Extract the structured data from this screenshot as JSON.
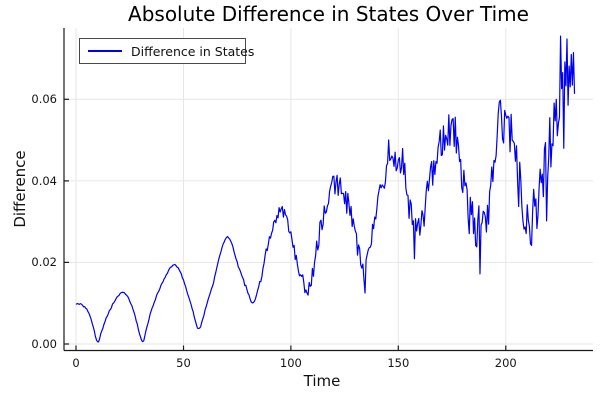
{
  "colors": {
    "line": "#0000f2",
    "grid": "#e6e6e6",
    "spine": "#1a1a1a",
    "background": "#ffffff"
  },
  "chart_data": {
    "type": "line",
    "title": "Absolute Difference in States Over Time",
    "xlabel": "Time",
    "ylabel": "Difference",
    "legend_position": "top-left",
    "grid": true,
    "series": [
      {
        "name": "Difference in States",
        "color": "#0000f2"
      }
    ],
    "xlim": [
      -5.6,
      240.6
    ],
    "ylim": [
      -0.0016,
      0.0775
    ],
    "xticks": [
      {
        "v": 0,
        "label": "0"
      },
      {
        "v": 50,
        "label": "50"
      },
      {
        "v": 100,
        "label": "100"
      },
      {
        "v": 150,
        "label": "150"
      },
      {
        "v": 200,
        "label": "200"
      }
    ],
    "yticks": [
      {
        "v": 0.0,
        "label": "0.00"
      },
      {
        "v": 0.02,
        "label": "0.02"
      },
      {
        "v": 0.04,
        "label": "0.04"
      },
      {
        "v": 0.06,
        "label": "0.06"
      }
    ],
    "t_start": 0,
    "t_end": 232,
    "t_step": 0.5,
    "backbone": [
      [
        0,
        0.0098
      ],
      [
        2,
        0.0097
      ],
      [
        4,
        0.009
      ],
      [
        6,
        0.0076
      ],
      [
        8,
        0.0043
      ],
      [
        10,
        0.0004
      ],
      [
        12,
        0.0032
      ],
      [
        14,
        0.0063
      ],
      [
        16,
        0.0086
      ],
      [
        19,
        0.0114
      ],
      [
        22,
        0.0126
      ],
      [
        24,
        0.0116
      ],
      [
        26,
        0.0093
      ],
      [
        28,
        0.0058
      ],
      [
        31,
        0.0005
      ],
      [
        33,
        0.0042
      ],
      [
        35,
        0.0082
      ],
      [
        38,
        0.0124
      ],
      [
        42,
        0.017
      ],
      [
        45,
        0.0192
      ],
      [
        47,
        0.019
      ],
      [
        49,
        0.017
      ],
      [
        51,
        0.014
      ],
      [
        54,
        0.0088
      ],
      [
        57,
        0.0036
      ],
      [
        59,
        0.0062
      ],
      [
        61,
        0.01
      ],
      [
        64,
        0.0152
      ],
      [
        67,
        0.022
      ],
      [
        70,
        0.0261
      ],
      [
        72,
        0.0252
      ],
      [
        74,
        0.0218
      ],
      [
        77,
        0.0168
      ],
      [
        80,
        0.0128
      ],
      [
        82,
        0.0098
      ],
      [
        84,
        0.0118
      ],
      [
        86,
        0.0158
      ],
      [
        89,
        0.0235
      ],
      [
        92,
        0.0295
      ],
      [
        95,
        0.0325
      ],
      [
        97,
        0.0317
      ],
      [
        99,
        0.0282
      ],
      [
        102,
        0.0222
      ],
      [
        105,
        0.0162
      ],
      [
        107,
        0.0136
      ],
      [
        109,
        0.0148
      ],
      [
        111,
        0.0202
      ],
      [
        114,
        0.029
      ],
      [
        117,
        0.0348
      ],
      [
        120,
        0.0392
      ],
      [
        122,
        0.0386
      ],
      [
        124,
        0.0376
      ],
      [
        127,
        0.0332
      ],
      [
        130,
        0.0262
      ],
      [
        132,
        0.0215
      ],
      [
        134,
        0.018
      ],
      [
        136,
        0.0212
      ],
      [
        138,
        0.0268
      ],
      [
        141,
        0.0345
      ],
      [
        144,
        0.0432
      ],
      [
        146,
        0.0478
      ],
      [
        148,
        0.0467
      ],
      [
        150,
        0.0455
      ],
      [
        152,
        0.0441
      ],
      [
        154,
        0.0372
      ],
      [
        156,
        0.0305
      ],
      [
        159,
        0.0272
      ],
      [
        162,
        0.0322
      ],
      [
        165,
        0.0402
      ],
      [
        168,
        0.0465
      ],
      [
        171,
        0.0518
      ],
      [
        174,
        0.0526
      ],
      [
        176,
        0.0519
      ],
      [
        178,
        0.0482
      ],
      [
        180,
        0.0421
      ],
      [
        182,
        0.0342
      ],
      [
        185,
        0.0301
      ],
      [
        188,
        0.0286
      ],
      [
        190,
        0.0301
      ],
      [
        192,
        0.0322
      ],
      [
        194,
        0.042
      ],
      [
        197,
        0.0532
      ],
      [
        199,
        0.054
      ],
      [
        201,
        0.0521
      ],
      [
        203,
        0.0499
      ],
      [
        205,
        0.0432
      ],
      [
        207,
        0.0372
      ],
      [
        210,
        0.0301
      ],
      [
        212,
        0.0307
      ],
      [
        214,
        0.0338
      ],
      [
        216,
        0.0392
      ],
      [
        218,
        0.0431
      ],
      [
        220,
        0.0468
      ],
      [
        222,
        0.0509
      ],
      [
        224,
        0.0558
      ],
      [
        226,
        0.0618
      ],
      [
        228,
        0.0649
      ],
      [
        230,
        0.0668
      ],
      [
        232,
        0.066
      ]
    ],
    "spikes": [
      [
        134.5,
        0.0125
      ],
      [
        157.5,
        0.0209
      ],
      [
        188,
        0.0172
      ],
      [
        196.5,
        0.0566
      ],
      [
        209.5,
        0.0271
      ],
      [
        211.5,
        0.0246
      ],
      [
        219,
        0.0302
      ],
      [
        220.5,
        0.0555
      ],
      [
        223.5,
        0.06
      ],
      [
        225.5,
        0.0755
      ],
      [
        227,
        0.048
      ],
      [
        228.5,
        0.0748
      ],
      [
        230.5,
        0.071
      ]
    ],
    "noise": {
      "start_t": 72,
      "base": 0.0002,
      "growth_per_t": 5e-05,
      "seed": 7,
      "clamp_min": 0.0003,
      "clamp_max": 0.0757
    }
  }
}
